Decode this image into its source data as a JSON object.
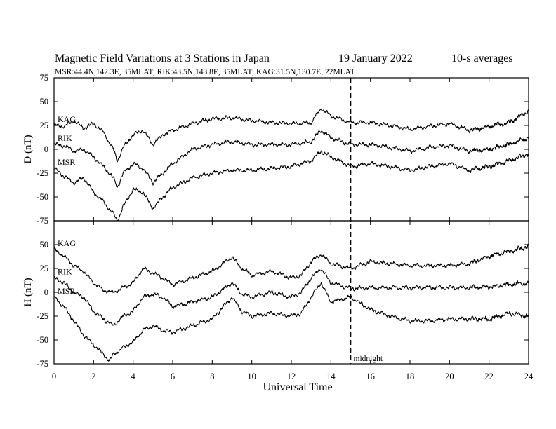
{
  "chart_data": {
    "type": "line",
    "title": "Magnetic Field Variations at 3 Stations in Japan",
    "date": "19 January  2022",
    "averaging": "10-s averages",
    "subtitle": "MSR:44.4N,142.3E, 35MLAT;  RIK:43.5N,143.8E, 35MLAT;  KAG:31.5N,130.7E, 22MLAT",
    "xlabel": "Universal Time",
    "xlim": [
      0,
      24
    ],
    "xticks": [
      0,
      2,
      4,
      6,
      8,
      10,
      12,
      14,
      16,
      18,
      20,
      22,
      24
    ],
    "annotation": {
      "label": "midnight",
      "x": 15
    },
    "panels": [
      {
        "ylabel": "D (nT)",
        "ylim": [
          -75,
          75
        ],
        "yticks": [
          75,
          50,
          25,
          0,
          -25,
          -50,
          -75
        ],
        "series": [
          {
            "name": "KAG",
            "x": [
              0,
              0.5,
              1,
              1.5,
              2,
              2.5,
              3,
              3.2,
              3.5,
              4,
              4.5,
              5,
              5.5,
              6,
              7,
              8,
              9,
              10,
              11,
              12,
              13,
              13.5,
              14,
              15,
              16,
              17,
              18,
              19,
              20,
              21,
              22,
              23,
              24
            ],
            "values": [
              25,
              24,
              30,
              22,
              27,
              18,
              0,
              -12,
              2,
              15,
              20,
              5,
              15,
              20,
              27,
              32,
              33,
              30,
              28,
              27,
              28,
              43,
              35,
              28,
              28,
              25,
              21,
              24,
              27,
              20,
              24,
              28,
              40
            ]
          },
          {
            "name": "RIK",
            "x": [
              0,
              0.5,
              1,
              1.5,
              2,
              2.5,
              3,
              3.2,
              3.5,
              4,
              4.5,
              5,
              5.5,
              6,
              7,
              8,
              9,
              10,
              11,
              12,
              13,
              13.5,
              14,
              15,
              16,
              17,
              18,
              19,
              20,
              21,
              22,
              23,
              24
            ],
            "values": [
              5,
              4,
              -2,
              0,
              -8,
              -18,
              -30,
              -40,
              -25,
              -15,
              -20,
              -35,
              -25,
              -15,
              0,
              5,
              8,
              5,
              5,
              5,
              8,
              20,
              12,
              5,
              5,
              2,
              -2,
              2,
              4,
              -2,
              0,
              5,
              12
            ]
          },
          {
            "name": "MSR",
            "x": [
              0,
              0.5,
              1,
              1.5,
              2,
              2.5,
              3,
              3.2,
              3.5,
              4,
              4.5,
              5,
              5.5,
              6,
              7,
              8,
              9,
              10,
              11,
              12,
              13,
              13.5,
              14,
              15,
              16,
              17,
              18,
              19,
              20,
              21,
              22,
              23,
              24
            ],
            "values": [
              -20,
              -28,
              -35,
              -30,
              -45,
              -55,
              -68,
              -75,
              -60,
              -42,
              -45,
              -62,
              -50,
              -40,
              -30,
              -25,
              -22,
              -22,
              -20,
              -18,
              -12,
              -2,
              -8,
              -18,
              -15,
              -18,
              -22,
              -18,
              -15,
              -22,
              -18,
              -12,
              -5
            ]
          }
        ]
      },
      {
        "ylabel": "H (nT)",
        "ylim": [
          -75,
          75
        ],
        "yticks": [
          50,
          25,
          0,
          -25,
          -50,
          -75
        ],
        "series": [
          {
            "name": "KAG",
            "x": [
              0,
              0.5,
              1,
              1.5,
              2,
              2.5,
              3,
              3.5,
              4,
              4.5,
              5,
              5.5,
              6,
              7,
              8,
              9,
              9.5,
              10,
              11,
              12,
              12.5,
              13,
              13.5,
              14,
              15,
              16,
              17,
              18,
              19,
              20,
              21,
              22,
              23,
              24
            ],
            "values": [
              45,
              38,
              28,
              22,
              10,
              2,
              0,
              5,
              10,
              25,
              20,
              15,
              8,
              15,
              22,
              37,
              25,
              18,
              22,
              15,
              18,
              32,
              40,
              30,
              25,
              32,
              30,
              28,
              28,
              28,
              30,
              38,
              43,
              48
            ]
          },
          {
            "name": "RIK",
            "x": [
              0,
              0.5,
              1,
              1.5,
              2,
              2.5,
              3,
              3.5,
              4,
              4.5,
              5,
              5.5,
              6,
              7,
              8,
              9,
              9.5,
              10,
              11,
              12,
              12.5,
              13,
              13.5,
              14,
              15,
              16,
              17,
              18,
              19,
              20,
              21,
              22,
              23,
              24
            ],
            "values": [
              15,
              10,
              0,
              -5,
              -20,
              -28,
              -35,
              -25,
              -20,
              -5,
              -2,
              -5,
              -15,
              -10,
              -5,
              10,
              -2,
              -5,
              0,
              -5,
              0,
              15,
              25,
              10,
              4,
              5,
              5,
              5,
              5,
              5,
              5,
              6,
              8,
              10
            ]
          },
          {
            "name": "MSR",
            "x": [
              0,
              0.5,
              1,
              1.5,
              2,
              2.5,
              2.8,
              3,
              3.5,
              4,
              4.5,
              5,
              5.5,
              6,
              7,
              8,
              9,
              9.5,
              10,
              11,
              12,
              12.5,
              13,
              13.5,
              14,
              15,
              16,
              17,
              18,
              19,
              20,
              21,
              22,
              23,
              24
            ],
            "values": [
              -5,
              -15,
              -30,
              -45,
              -55,
              -65,
              -72,
              -65,
              -58,
              -52,
              -40,
              -35,
              -40,
              -42,
              -35,
              -28,
              -5,
              -20,
              -25,
              -22,
              -25,
              -22,
              -5,
              10,
              -10,
              -5,
              -18,
              -25,
              -30,
              -30,
              -28,
              -28,
              -28,
              -22,
              -25
            ]
          }
        ]
      }
    ]
  }
}
